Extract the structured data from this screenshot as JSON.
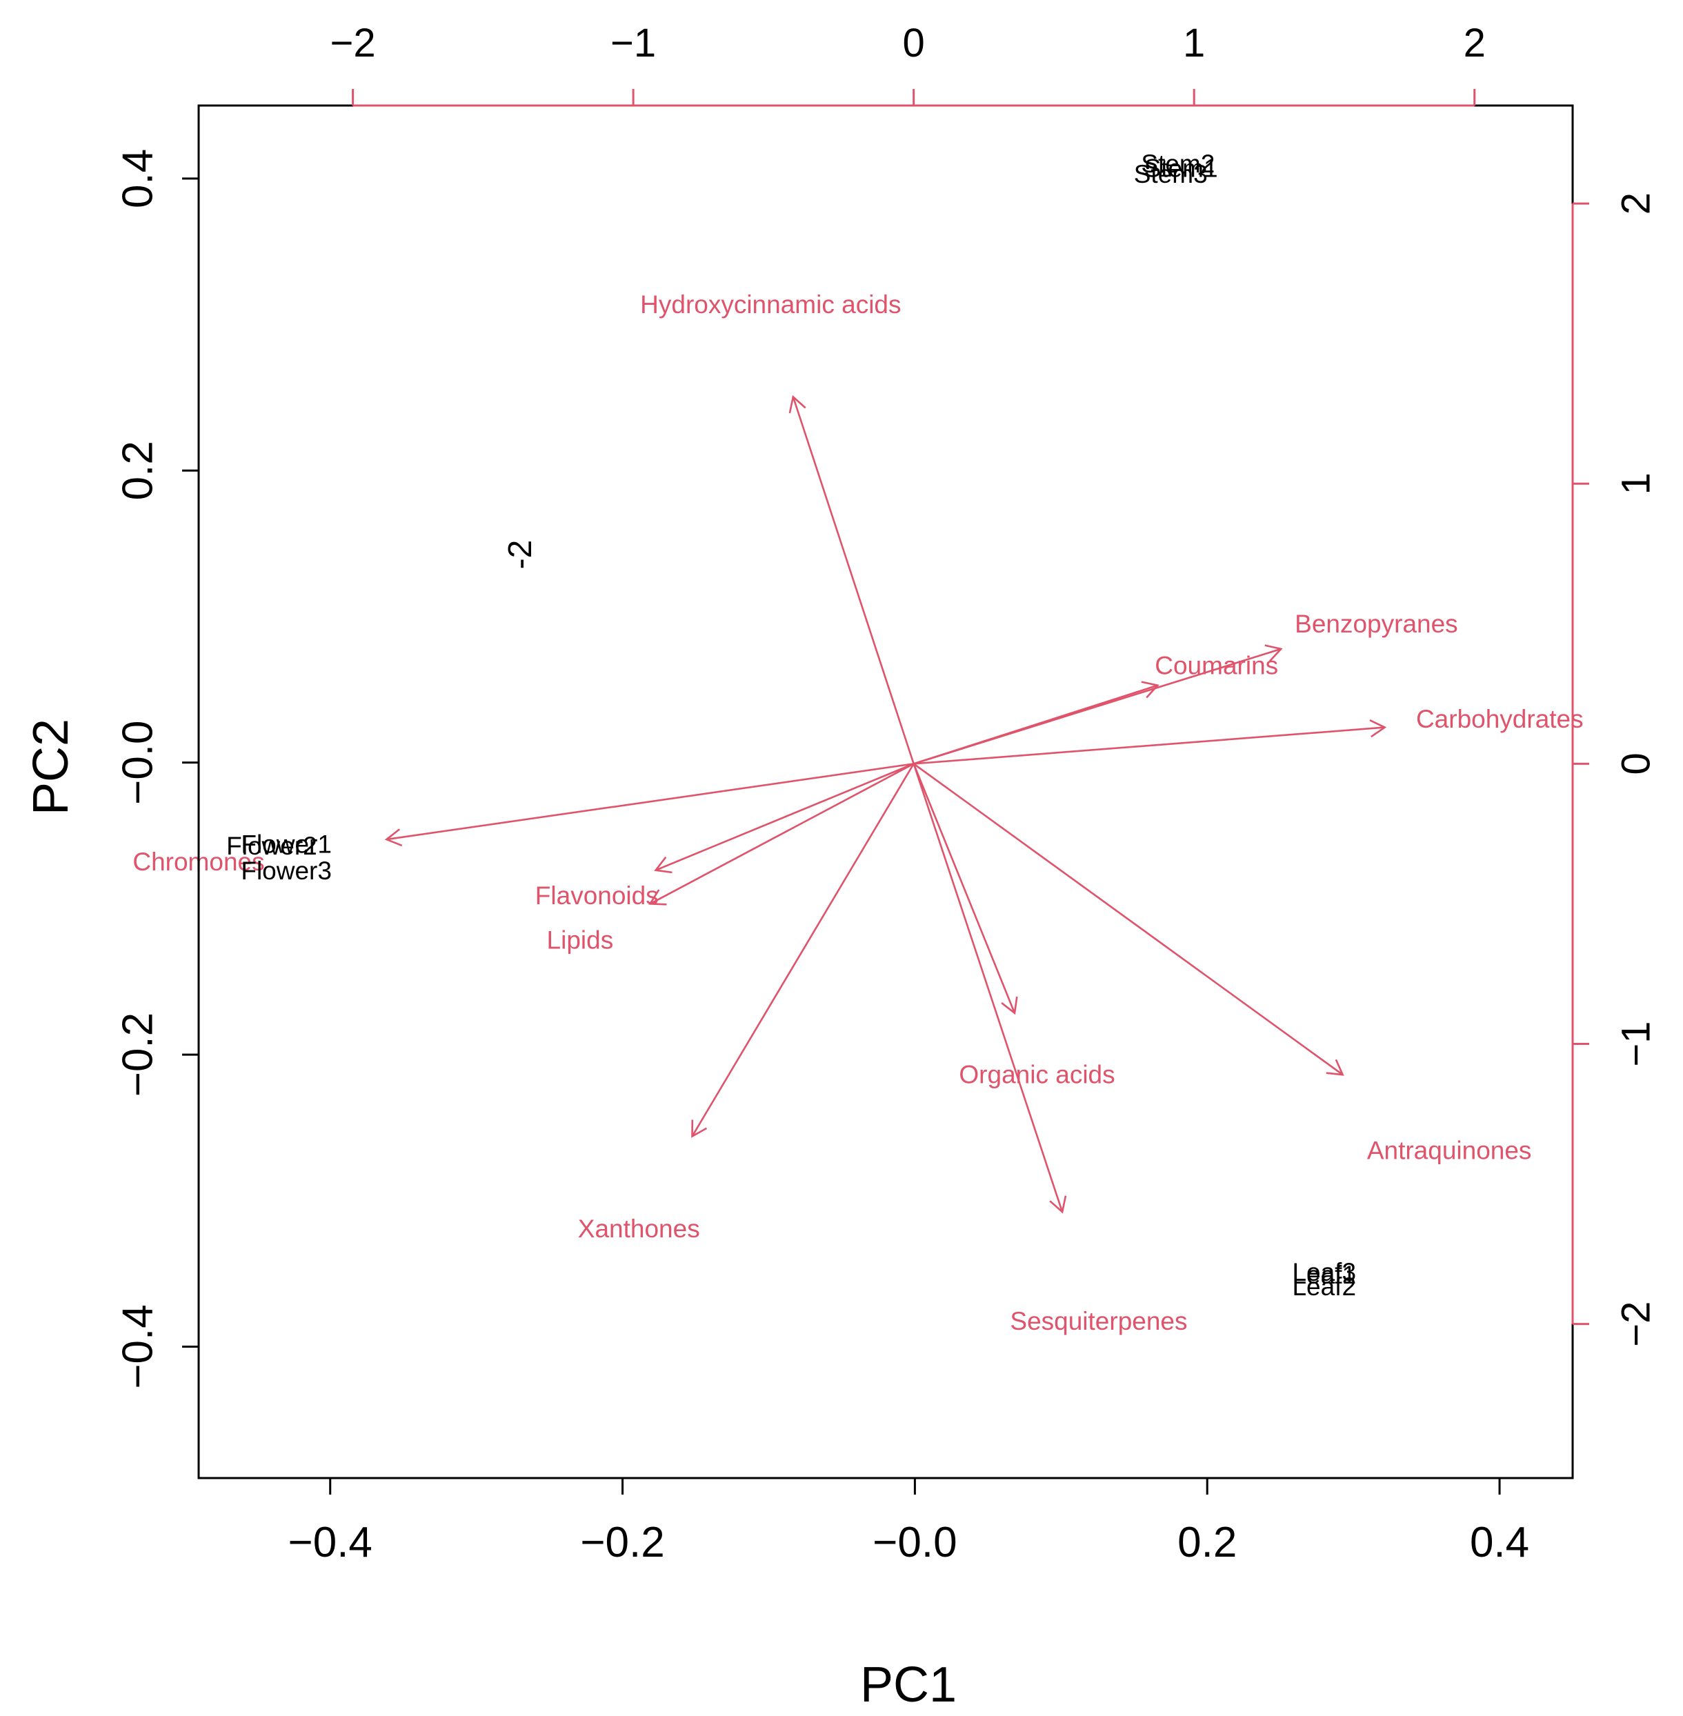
{
  "chart_data": {
    "type": "scatter",
    "subtype": "biplot",
    "title": "",
    "xlabel": "PC1",
    "ylabel": "PC2",
    "xlim": [
      -0.49,
      0.45
    ],
    "ylim": [
      -0.49,
      0.45
    ],
    "x_ticks": [
      "-0.4",
      "-0.2",
      "-0.0",
      "0.2",
      "0.4"
    ],
    "y_ticks": [
      "-0.4",
      "-0.2",
      "-0.0",
      "0.2",
      "0.4"
    ],
    "top_axis": {
      "range": [
        -2.55,
        2.35
      ],
      "ticks": [
        "-2",
        "-1",
        "0",
        "1",
        "2"
      ]
    },
    "right_axis": {
      "range": [
        -2.55,
        2.35
      ],
      "ticks": [
        "-2",
        "-1",
        "0",
        "1",
        "2"
      ]
    },
    "stray_label": "-2",
    "samples": [
      {
        "name": "Stem2",
        "x": 0.18,
        "y": 0.41
      },
      {
        "name": "Stem1",
        "x": 0.182,
        "y": 0.407
      },
      {
        "name": "Stem3",
        "x": 0.175,
        "y": 0.403
      },
      {
        "name": "Flower2",
        "x": -0.44,
        "y": -0.057
      },
      {
        "name": "Flower1",
        "x": -0.43,
        "y": -0.056
      },
      {
        "name": "Flower3",
        "x": -0.43,
        "y": -0.074
      },
      {
        "name": "Leaf3",
        "x": 0.28,
        "y": -0.349
      },
      {
        "name": "Leaf1",
        "x": 0.28,
        "y": -0.351
      },
      {
        "name": "Leaf2",
        "x": 0.28,
        "y": -0.359
      }
    ],
    "loadings": [
      {
        "name": "Hydroxycinnamic acids",
        "x": -0.43,
        "y": 1.31,
        "label_x": -0.51,
        "label_y": 1.64
      },
      {
        "name": "Benzopyranes",
        "x": 1.31,
        "y": 0.41,
        "label_x": 1.65,
        "label_y": 0.5
      },
      {
        "name": "Coumarins",
        "x": 0.87,
        "y": 0.28,
        "label_x": 1.08,
        "label_y": 0.35
      },
      {
        "name": "Carbohydrates",
        "x": 1.68,
        "y": 0.13,
        "label_x": 2.09,
        "label_y": 0.16
      },
      {
        "name": "Chromones",
        "x": -1.88,
        "y": -0.27,
        "label_x": -2.55,
        "label_y": -0.35
      },
      {
        "name": "Flavonoids",
        "x": -0.92,
        "y": -0.38,
        "label_x": -1.13,
        "label_y": -0.47
      },
      {
        "name": "Lipids",
        "x": -0.94,
        "y": -0.5,
        "label_x": -1.19,
        "label_y": -0.63
      },
      {
        "name": "Organic acids",
        "x": 0.36,
        "y": -0.89,
        "label_x": 0.44,
        "label_y": -1.11
      },
      {
        "name": "Xanthones",
        "x": -0.79,
        "y": -1.33,
        "label_x": -0.98,
        "label_y": -1.66
      },
      {
        "name": "Antraquinones",
        "x": 1.53,
        "y": -1.11,
        "label_x": 1.91,
        "label_y": -1.38
      },
      {
        "name": "Sesquiterpenes",
        "x": 0.53,
        "y": -1.6,
        "label_x": 0.66,
        "label_y": -1.99
      }
    ],
    "colors": {
      "loadings": "#df536b",
      "samples": "#000000",
      "axes": "#000000"
    }
  }
}
